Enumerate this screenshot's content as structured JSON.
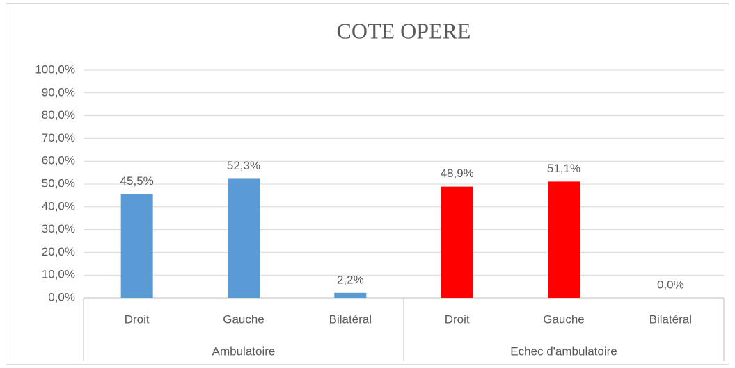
{
  "chart_data": {
    "type": "bar",
    "title": "COTE OPERE",
    "groups": [
      {
        "name": "Ambulatoire",
        "color": "#5b9bd5",
        "categories": [
          "Droit",
          "Gauche",
          "Bilatéral"
        ],
        "values": [
          45.5,
          52.3,
          2.2
        ],
        "value_labels": [
          "45,5%",
          "52,3%",
          "2,2%"
        ]
      },
      {
        "name": "Echec d'ambulatoire",
        "color": "#ff0000",
        "categories": [
          "Droit",
          "Gauche",
          "Bilatéral"
        ],
        "values": [
          48.9,
          51.1,
          0.0
        ],
        "value_labels": [
          "48,9%",
          "51,1%",
          "0,0%"
        ]
      }
    ],
    "ylim": [
      0,
      100
    ],
    "yticks": [
      {
        "value": 0,
        "label": "0,0%"
      },
      {
        "value": 10,
        "label": "10,0%"
      },
      {
        "value": 20,
        "label": "20,0%"
      },
      {
        "value": 30,
        "label": "30,0%"
      },
      {
        "value": 40,
        "label": "40,0%"
      },
      {
        "value": 50,
        "label": "50,0%"
      },
      {
        "value": 60,
        "label": "60,0%"
      },
      {
        "value": 70,
        "label": "70,0%"
      },
      {
        "value": 80,
        "label": "80,0%"
      },
      {
        "value": 90,
        "label": "90,0%"
      },
      {
        "value": 100,
        "label": "100,0%"
      }
    ],
    "grid": true
  }
}
